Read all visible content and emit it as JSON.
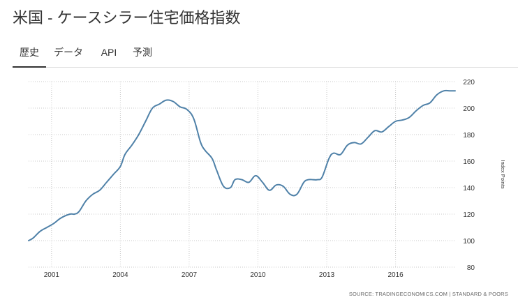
{
  "page": {
    "title": "米国 - ケースシラー住宅価格指数",
    "source": "SOURCE: TRADINGECONOMICS.COM | STANDARD & POORS"
  },
  "tabs": [
    {
      "label": "歴史",
      "active": true
    },
    {
      "label": "データ",
      "active": false
    },
    {
      "label": "API",
      "active": false
    },
    {
      "label": "予測",
      "active": false
    }
  ],
  "chart_data": {
    "type": "line",
    "ylabel": "Index Points",
    "ylim": [
      80,
      220
    ],
    "xlim": [
      2000.0,
      2018.6
    ],
    "x_ticks": [
      2001,
      2004,
      2007,
      2010,
      2013,
      2016
    ],
    "y_ticks": [
      80,
      100,
      120,
      140,
      160,
      180,
      200,
      220
    ],
    "grid": true,
    "line_color": "#4f81a8",
    "series": [
      {
        "x": [
          2000.0,
          2000.2,
          2000.5,
          2000.8,
          2001.1,
          2001.4,
          2001.8,
          2002.0,
          2002.2,
          2002.5,
          2002.8,
          2003.1,
          2003.4,
          2003.7,
          2004.0,
          2004.2,
          2004.5,
          2004.8,
          2005.1,
          2005.4,
          2005.7,
          2006.0,
          2006.3,
          2006.6,
          2006.9,
          2007.2,
          2007.5,
          2007.7,
          2008.0,
          2008.2,
          2008.5,
          2008.8,
          2009.0,
          2009.3,
          2009.6,
          2009.9,
          2010.2,
          2010.5,
          2010.8,
          2011.1,
          2011.4,
          2011.7,
          2012.0,
          2012.2,
          2012.4,
          2012.6,
          2012.8,
          2013.1,
          2013.3,
          2013.6,
          2013.9,
          2014.2,
          2014.5,
          2014.8,
          2015.1,
          2015.4,
          2015.7,
          2016.0,
          2016.3,
          2016.6,
          2016.9,
          2017.2,
          2017.5,
          2017.8,
          2018.1,
          2018.4,
          2018.6
        ],
        "y": [
          100,
          102,
          107,
          110,
          113,
          117,
          120,
          120,
          122,
          130,
          135,
          138,
          144,
          150,
          156,
          165,
          172,
          180,
          190,
          200,
          203,
          206,
          205,
          201,
          199,
          192,
          174,
          168,
          162,
          153,
          141,
          140,
          146,
          146,
          144,
          149,
          144,
          138,
          142,
          141,
          135,
          135,
          144,
          146,
          146,
          146,
          148,
          162,
          166,
          165,
          172,
          174,
          173,
          178,
          183,
          182,
          186,
          190,
          191,
          193,
          198,
          202,
          204,
          210,
          213,
          213,
          213
        ]
      }
    ]
  }
}
